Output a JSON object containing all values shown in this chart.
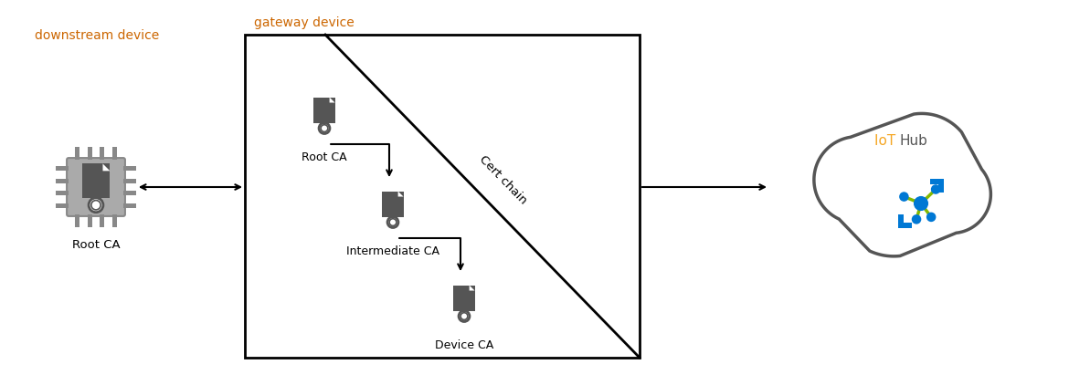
{
  "title": "gateway device",
  "downstream_label": "downstream device",
  "downstream_sublabel": "Root CA",
  "gateway_labels": [
    "Root CA",
    "Intermediate CA",
    "Device CA"
  ],
  "cert_chain_label": "Cert chain",
  "cloud_label": "IoT Hub",
  "background_color": "#ffffff",
  "gateway_box_color": "#000000",
  "chip_color": "#aaaaaa",
  "icon_color": "#555555",
  "arrow_color": "#000000",
  "cloud_outline_color": "#555555",
  "title_color": "#cc6600",
  "downstream_label_color": "#cc6600",
  "iot_hub_color_io": "#f5a623",
  "azure_blue": "#0078d4",
  "azure_green": "#84b900"
}
